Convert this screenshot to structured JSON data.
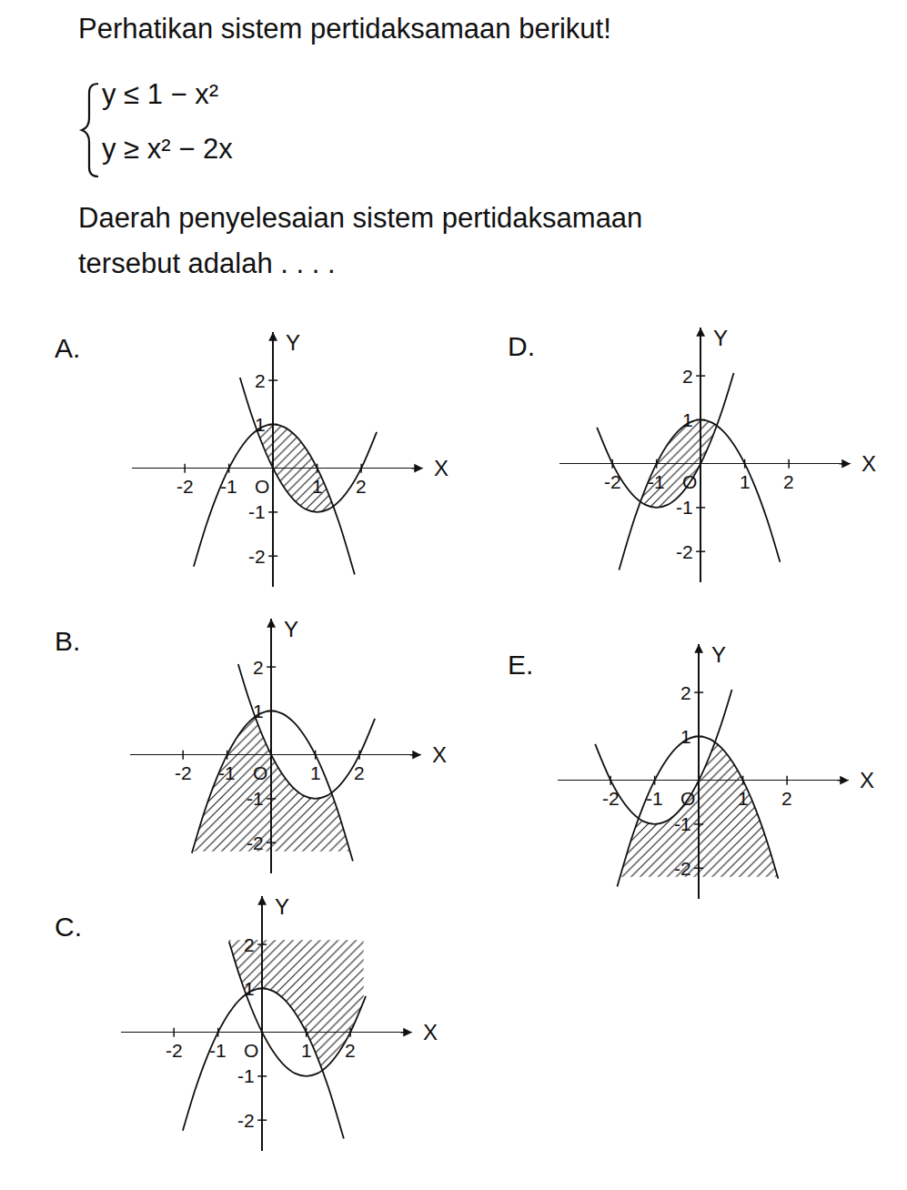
{
  "question": "Perhatikan sistem pertidaksamaan berikut!",
  "system": [
    "y ≤ 1 − x²",
    "y ≥ x² − 2x"
  ],
  "prompt": [
    "Daerah penyelesaian sistem pertidaksamaan",
    "tersebut adalah . . . ."
  ],
  "chart_data": [
    {
      "title": "A.",
      "type": "line",
      "color": "#111111",
      "x_label": "X",
      "y_label": "Y",
      "xlim": [
        -3.2,
        3.4
      ],
      "ylim": [
        -2.7,
        3.1
      ],
      "xticks": [
        -2,
        -1,
        {
          "value": 0,
          "label": "O"
        },
        1,
        2
      ],
      "yticks": [
        -2,
        -1,
        1,
        2
      ],
      "series": [
        {
          "x": [
            -1.8,
            -1.5,
            -1.25,
            -1,
            -0.75,
            -0.5,
            -0.25,
            0,
            0.25,
            0.5,
            0.75,
            1,
            1.25,
            1.5,
            1.85
          ],
          "values": [
            -2.24,
            -1.25,
            -0.5625,
            0,
            0.4375,
            0.75,
            0.9375,
            1,
            0.9375,
            0.75,
            0.4375,
            0,
            -0.5625,
            -1.25,
            -2.4225
          ]
        },
        {
          "x": [
            -0.75,
            -0.5,
            -0.25,
            0,
            0.25,
            0.5,
            0.75,
            1,
            1.25,
            1.5,
            1.75,
            2,
            2.35
          ],
          "values": [
            2.0625,
            1.25,
            0.5625,
            0,
            -0.4375,
            -0.75,
            -0.9375,
            -1,
            -0.9375,
            -0.75,
            -0.4375,
            0,
            0.8225
          ]
        }
      ],
      "region": {
        "x": [
          -0.366,
          -0.25,
          0,
          0.25,
          0.5,
          0.75,
          1,
          1.25,
          1.366
        ],
        "upper": [
          0.866,
          0.9375,
          1,
          0.9375,
          0.75,
          0.4375,
          0,
          -0.5625,
          -0.866
        ],
        "lower": [
          0.866,
          0.5625,
          0,
          -0.4375,
          -0.75,
          -0.9375,
          -1,
          -0.9375,
          -0.866
        ]
      }
    },
    {
      "title": "B.",
      "type": "line",
      "color": "#111111",
      "x_label": "X",
      "y_label": "Y",
      "xlim": [
        -3.2,
        3.4
      ],
      "ylim": [
        -2.7,
        3.1
      ],
      "xticks": [
        -2,
        -1,
        {
          "value": 0,
          "label": "O"
        },
        1,
        2
      ],
      "yticks": [
        -2,
        -1,
        1,
        2
      ],
      "series": [
        {
          "x": [
            -1.8,
            -1.5,
            -1.25,
            -1,
            -0.75,
            -0.5,
            -0.25,
            0,
            0.25,
            0.5,
            0.75,
            1,
            1.25,
            1.5,
            1.85
          ],
          "values": [
            -2.24,
            -1.25,
            -0.5625,
            0,
            0.4375,
            0.75,
            0.9375,
            1,
            0.9375,
            0.75,
            0.4375,
            0,
            -0.5625,
            -1.25,
            -2.4225
          ]
        },
        {
          "x": [
            -0.75,
            -0.5,
            -0.25,
            0,
            0.25,
            0.5,
            0.75,
            1,
            1.25,
            1.5,
            1.75,
            2,
            2.35
          ],
          "values": [
            2.0625,
            1.25,
            0.5625,
            0,
            -0.4375,
            -0.75,
            -0.9375,
            -1,
            -0.9375,
            -0.75,
            -0.4375,
            0,
            0.8225
          ]
        }
      ],
      "region": {
        "x": [
          -1.79,
          -1.5,
          -1.25,
          -1,
          -0.75,
          -0.5,
          -0.366,
          -0.25,
          0,
          0.25,
          0.5,
          0.75,
          1,
          1.25,
          1.366,
          1.5,
          1.79
        ],
        "upper": [
          -2.2,
          -1.25,
          -0.5625,
          0,
          0.4375,
          0.75,
          0.866,
          0.5625,
          0,
          -0.4375,
          -0.75,
          -0.9375,
          -1,
          -0.9375,
          -0.866,
          -1.25,
          -2.2
        ],
        "lower": [
          -2.2,
          -2.2,
          -2.2,
          -2.2,
          -2.2,
          -2.2,
          -2.2,
          -2.2,
          -2.2,
          -2.2,
          -2.2,
          -2.2,
          -2.2,
          -2.2,
          -2.2,
          -2.2,
          -2.2
        ]
      }
    },
    {
      "title": "C.",
      "type": "line",
      "color": "#111111",
      "x_label": "X",
      "y_label": "Y",
      "xlim": [
        -3.2,
        3.4
      ],
      "ylim": [
        -2.7,
        3.1
      ],
      "xticks": [
        -2,
        -1,
        {
          "value": 0,
          "label": "O"
        },
        1,
        2
      ],
      "yticks": [
        -2,
        -1,
        1,
        2
      ],
      "series": [
        {
          "x": [
            -1.8,
            -1.5,
            -1.25,
            -1,
            -0.75,
            -0.5,
            -0.25,
            0,
            0.25,
            0.5,
            0.75,
            1,
            1.25,
            1.5,
            1.85
          ],
          "values": [
            -2.24,
            -1.25,
            -0.5625,
            0,
            0.4375,
            0.75,
            0.9375,
            1,
            0.9375,
            0.75,
            0.4375,
            0,
            -0.5625,
            -1.25,
            -2.4225
          ]
        },
        {
          "x": [
            -0.75,
            -0.5,
            -0.25,
            0,
            0.25,
            0.5,
            0.75,
            1,
            1.25,
            1.5,
            1.75,
            2,
            2.35
          ],
          "values": [
            2.0625,
            1.25,
            0.5625,
            0,
            -0.4375,
            -0.75,
            -0.9375,
            -1,
            -0.9375,
            -0.75,
            -0.4375,
            0,
            0.8225
          ]
        }
      ],
      "region": {
        "x": [
          -0.761,
          -0.5,
          -0.366,
          -0.25,
          0,
          0.25,
          0.5,
          0.75,
          1,
          1.25,
          1.366,
          1.5,
          1.75,
          2,
          2.3
        ],
        "upper": [
          2.1,
          2.1,
          2.1,
          2.1,
          2.1,
          2.1,
          2.1,
          2.1,
          2.1,
          2.1,
          2.1,
          2.1,
          2.1,
          2.1,
          2.1
        ],
        "lower": [
          2.1,
          1.25,
          0.866,
          0.9375,
          1,
          0.9375,
          0.75,
          0.4375,
          0,
          -0.5625,
          -0.866,
          -0.75,
          -0.4375,
          0,
          0.69
        ]
      }
    },
    {
      "title": "D.",
      "type": "line",
      "color": "#111111",
      "x_label": "X",
      "y_label": "Y",
      "xlim": [
        -3.2,
        3.4
      ],
      "ylim": [
        -2.7,
        3.1
      ],
      "xticks": [
        -2,
        -1,
        {
          "value": 0,
          "label": "O"
        },
        1,
        2
      ],
      "yticks": [
        -2,
        -1,
        1,
        2
      ],
      "series": [
        {
          "x": [
            -1.85,
            -1.5,
            -1.25,
            -1,
            -0.75,
            -0.5,
            -0.25,
            0,
            0.25,
            0.5,
            0.75,
            1,
            1.25,
            1.5,
            1.8
          ],
          "values": [
            -2.4225,
            -1.25,
            -0.5625,
            0,
            0.4375,
            0.75,
            0.9375,
            1,
            0.9375,
            0.75,
            0.4375,
            0,
            -0.5625,
            -1.25,
            -2.24
          ]
        },
        {
          "x": [
            -2.35,
            -2,
            -1.75,
            -1.5,
            -1.25,
            -1,
            -0.75,
            -0.5,
            -0.25,
            0,
            0.25,
            0.5,
            0.75
          ],
          "values": [
            0.8225,
            0,
            -0.4375,
            -0.75,
            -0.9375,
            -1,
            -0.9375,
            -0.75,
            -0.4375,
            0,
            0.5625,
            1.25,
            2.0625
          ]
        }
      ],
      "region": {
        "x": [
          -1.366,
          -1.25,
          -1,
          -0.75,
          -0.5,
          -0.25,
          0,
          0.25,
          0.366
        ],
        "upper": [
          -0.866,
          -0.5625,
          0,
          0.4375,
          0.75,
          0.9375,
          1,
          0.9375,
          0.866
        ],
        "lower": [
          -0.866,
          -0.9375,
          -1,
          -0.9375,
          -0.75,
          -0.4375,
          0,
          0.5625,
          0.866
        ]
      }
    },
    {
      "title": "E.",
      "type": "line",
      "color": "#111111",
      "x_label": "X",
      "y_label": "Y",
      "xlim": [
        -3.2,
        3.4
      ],
      "ylim": [
        -2.7,
        3.1
      ],
      "xticks": [
        -2,
        -1,
        {
          "value": 0,
          "label": "O"
        },
        1,
        2
      ],
      "yticks": [
        -2,
        -1,
        1,
        2
      ],
      "series": [
        {
          "x": [
            -1.85,
            -1.5,
            -1.25,
            -1,
            -0.75,
            -0.5,
            -0.25,
            0,
            0.25,
            0.5,
            0.75,
            1,
            1.25,
            1.5,
            1.8
          ],
          "values": [
            -2.4225,
            -1.25,
            -0.5625,
            0,
            0.4375,
            0.75,
            0.9375,
            1,
            0.9375,
            0.75,
            0.4375,
            0,
            -0.5625,
            -1.25,
            -2.24
          ]
        },
        {
          "x": [
            -2.35,
            -2,
            -1.75,
            -1.5,
            -1.25,
            -1,
            -0.75,
            -0.5,
            -0.25,
            0,
            0.25,
            0.5,
            0.75
          ],
          "values": [
            0.8225,
            0,
            -0.4375,
            -0.75,
            -0.9375,
            -1,
            -0.9375,
            -0.75,
            -0.4375,
            0,
            0.5625,
            1.25,
            2.0625
          ]
        }
      ],
      "region": {
        "x": [
          -1.79,
          -1.5,
          -1.366,
          -1.25,
          -1,
          -0.75,
          -0.5,
          -0.25,
          0,
          0.25,
          0.366,
          0.5,
          0.75,
          1,
          1.25,
          1.5,
          1.79
        ],
        "upper": [
          -2.2,
          -1.25,
          -0.866,
          -0.9375,
          -1,
          -0.9375,
          -0.75,
          -0.4375,
          0,
          0.5625,
          0.866,
          0.75,
          0.4375,
          0,
          -0.5625,
          -1.25,
          -2.2
        ],
        "lower": [
          -2.2,
          -2.2,
          -2.2,
          -2.2,
          -2.2,
          -2.2,
          -2.2,
          -2.2,
          -2.2,
          -2.2,
          -2.2,
          -2.2,
          -2.2,
          -2.2,
          -2.2,
          -2.2,
          -2.2
        ]
      }
    }
  ]
}
